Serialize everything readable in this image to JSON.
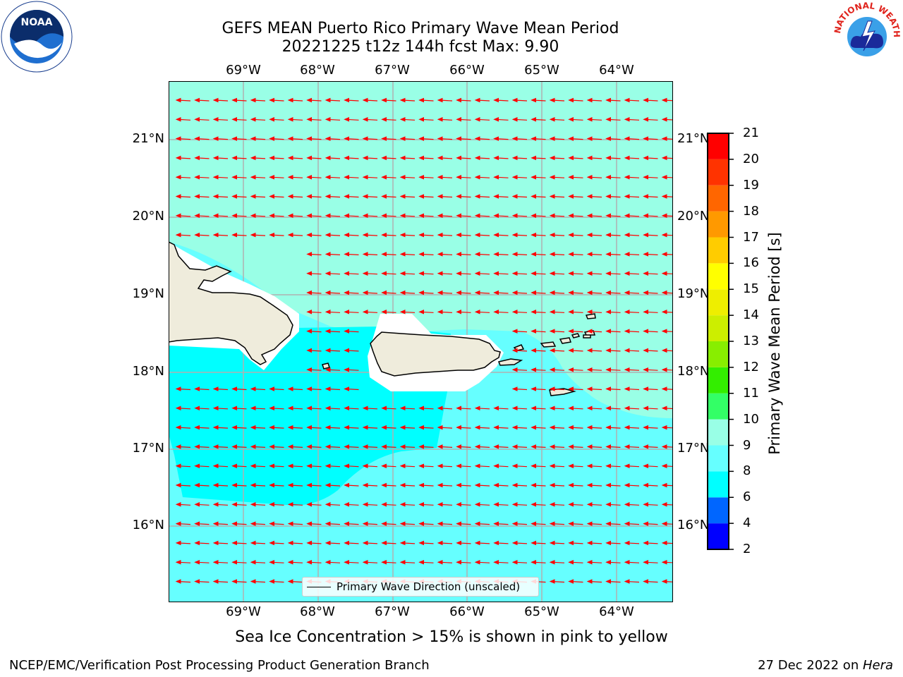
{
  "title_line1": "GEFS MEAN Puerto Rico Primary Wave Mean Period",
  "title_line2": "20221225 t12z 144h fcst   Max: 9.90",
  "lon_labels": [
    "69°W",
    "68°W",
    "67°W",
    "66°W",
    "65°W",
    "64°W"
  ],
  "lat_labels": [
    "21°N",
    "20°N",
    "19°N",
    "18°N",
    "17°N",
    "16°N"
  ],
  "colorbar": {
    "title": "Primary Wave Mean Period [s]",
    "ticks": [
      "21",
      "20",
      "19",
      "18",
      "17",
      "16",
      "15",
      "14",
      "13",
      "12",
      "11",
      "10",
      "9",
      "8",
      "6",
      "4",
      "2"
    ],
    "colors": [
      "#0000ff",
      "#0066ff",
      "#00ffff",
      "#66ffff",
      "#99ffe6",
      "#33ff66",
      "#33ee00",
      "#88ee00",
      "#ccee00",
      "#eeee00",
      "#ffff00",
      "#ffcc00",
      "#ff9900",
      "#ff6600",
      "#ff3300",
      "#ff0000"
    ]
  },
  "legend_label": "Primary Wave Direction (unscaled)",
  "ice_note": "Sea Ice Concentration > 15% is shown in pink to yellow",
  "credit": "NCEP/EMC/Verification Post Processing Product Generation Branch",
  "date_prefix": "27 Dec 2022 on ",
  "date_host": "Hera",
  "logos": {
    "left": "NOAA",
    "right_ring": "NATIONAL WEATHER SERVICE"
  },
  "colors": {
    "arrow": "#ff0000",
    "land": "#efecdc",
    "grid": "#b0b0b0"
  }
}
